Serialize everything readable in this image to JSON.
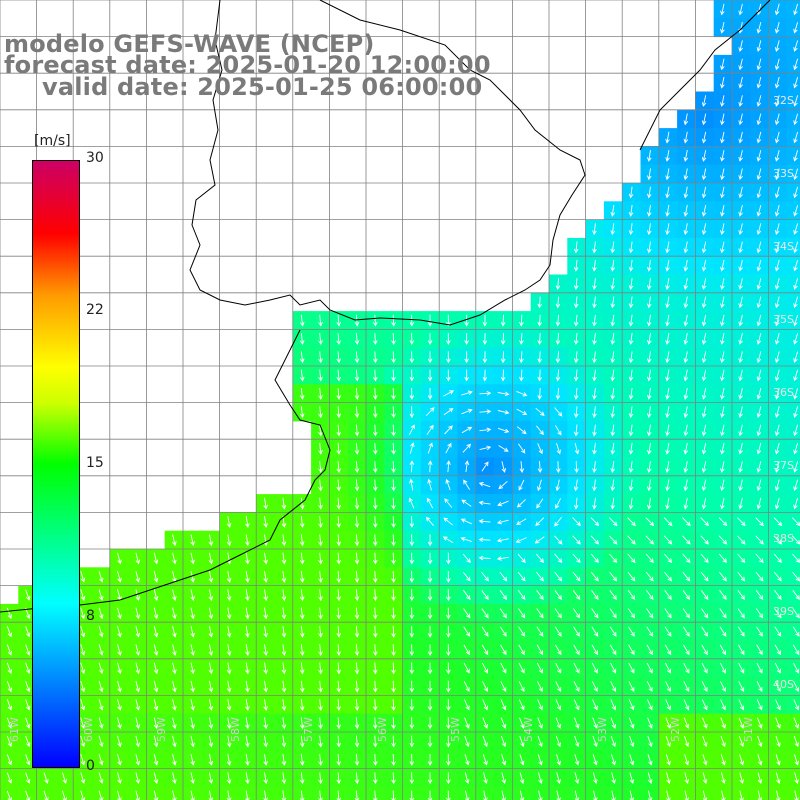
{
  "title": {
    "line1": "modelo GEFS-WAVE (NCEP)",
    "line2": "forecast date: 2025-01-20 12:00:00",
    "line3": "valid date: 2025-01-25 06:00:00"
  },
  "colorbar": {
    "units": "[m/s]",
    "ticks": [
      "30",
      "22",
      "15",
      "8",
      "0"
    ],
    "colors": [
      "#0000ff",
      "#00aaff",
      "#00ffff",
      "#00ff00",
      "#ffff00",
      "#ff9900",
      "#ff0000",
      "#cc0066"
    ]
  },
  "lat_labels": [
    "32S",
    "33S",
    "34S",
    "35S",
    "36S",
    "37S",
    "38S",
    "39S",
    "40S"
  ],
  "lon_labels": [
    "61W",
    "60W",
    "59W",
    "58W",
    "57W",
    "56W",
    "55W",
    "54W",
    "53W",
    "52W",
    "51W"
  ],
  "colors": {
    "land": "#ffffff",
    "grid": "#808080",
    "coast": "#000000",
    "arrows": "#ffffff"
  }
}
